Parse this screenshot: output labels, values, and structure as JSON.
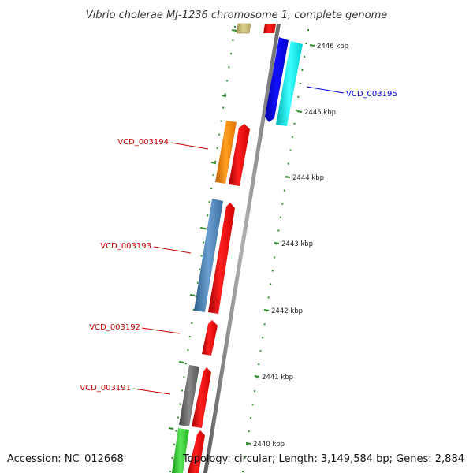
{
  "title": "Vibrio cholerae MJ-1236 chromosome 1, complete genome",
  "footer": {
    "accession": "Accession: NC_012668",
    "summary": "Topology: circular; Length: 3,149,584 bp; Genes: 2,884"
  },
  "ticks": [
    {
      "label": "2446 kbp"
    },
    {
      "label": "2445 kbp"
    },
    {
      "label": "2444 kbp"
    },
    {
      "label": "2443 kbp"
    },
    {
      "label": "2442 kbp"
    },
    {
      "label": "2441 kbp"
    },
    {
      "label": "2440 kbp"
    }
  ],
  "gene_labels": [
    {
      "name": "VCD_003195",
      "color": "#0000cc"
    },
    {
      "name": "VCD_003194",
      "color": "#cc0000"
    },
    {
      "name": "VCD_003193",
      "color": "#cc0000"
    },
    {
      "name": "VCD_003192",
      "color": "#cc0000"
    },
    {
      "name": "VCD_003191",
      "color": "#cc0000"
    }
  ],
  "colors": {
    "backbone": "#8c8c8c",
    "cds": "#ff0000",
    "tick": "#2e8b2e",
    "blue_gene": "#0000ee",
    "cyan_gene": "#00eeee",
    "orange_gene": "#ff8c00",
    "steelblue_gene": "#4a82b4",
    "gray_gene": "#6a6a6a",
    "green_gene": "#33cc33",
    "olive_gene": "#c8b86a"
  }
}
